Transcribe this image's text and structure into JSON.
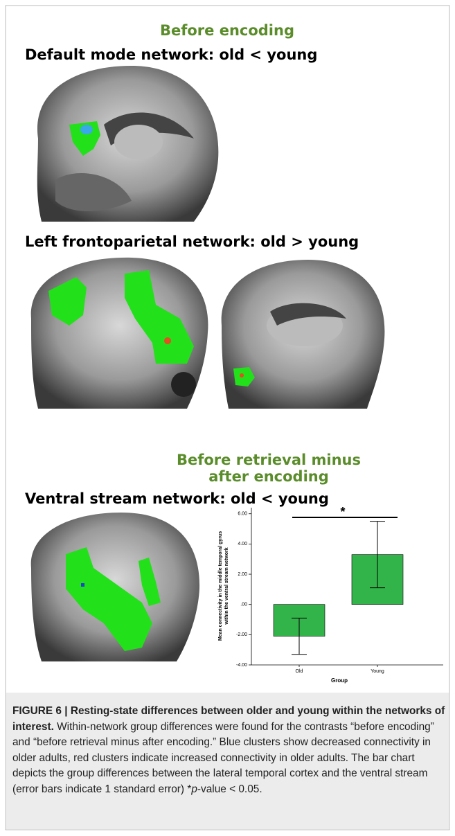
{
  "headings": {
    "section1": "Before encoding",
    "network1": "Default mode network: old < young",
    "network2": "Left frontoparietal network: old > young",
    "section2_line1": "Before retrieval minus",
    "section2_line2": "after encoding",
    "network3": "Ventral stream network: old < young"
  },
  "chart_data": {
    "type": "bar",
    "categories": [
      "Old",
      "Young"
    ],
    "values": [
      -2.1,
      3.3
    ],
    "errors": [
      1.2,
      2.2
    ],
    "color": "#33b44a",
    "ylim": [
      -4,
      6.4
    ],
    "yticks": [
      {
        "value": -4,
        "label": "-4.00"
      },
      {
        "value": -2,
        "label": "-2.00"
      },
      {
        "value": 0,
        "label": ".00"
      },
      {
        "value": 2,
        "label": "2.00"
      },
      {
        "value": 4,
        "label": "4.00"
      },
      {
        "value": 6,
        "label": "6.00"
      }
    ],
    "ylabel_line1": "Mean connectivity in the middle temporal gyrus",
    "ylabel_line2": "within the ventral stream network",
    "xlabel": "Group",
    "annotation": "*"
  },
  "caption": {
    "title": "FIGURE 6 | Resting-state differences between older and young within the networks of interest.",
    "text": " Within-network group differences were found for the contrasts “before encoding” and “before retrieval minus after encoding.” Blue clusters show decreased connectivity in older adults, red clusters indicate increased connectivity in older adults. The bar chart depicts the group differences between the lateral temporal cortex and the ventral stream (error bars indicate 1 standard error) ",
    "star": "*",
    "italic": "p",
    "end": "-value < 0.05."
  }
}
